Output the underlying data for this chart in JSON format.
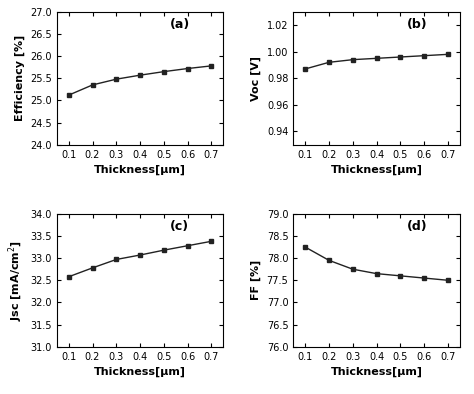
{
  "thickness": [
    0.1,
    0.2,
    0.3,
    0.4,
    0.5,
    0.6,
    0.7
  ],
  "efficiency": [
    25.12,
    25.35,
    25.48,
    25.57,
    25.65,
    25.72,
    25.78
  ],
  "voc": [
    0.987,
    0.992,
    0.994,
    0.995,
    0.996,
    0.997,
    0.998
  ],
  "jsc": [
    32.58,
    32.78,
    32.97,
    33.07,
    33.18,
    33.28,
    33.38
  ],
  "ff": [
    78.25,
    77.95,
    77.75,
    77.65,
    77.6,
    77.55,
    77.5
  ],
  "eff_ylim": [
    24.0,
    27.0
  ],
  "eff_yticks": [
    24.0,
    24.5,
    25.0,
    25.5,
    26.0,
    26.5,
    27.0
  ],
  "voc_ylim": [
    0.93,
    1.03
  ],
  "voc_yticks": [
    0.94,
    0.96,
    0.98,
    1.0,
    1.02
  ],
  "jsc_ylim": [
    31.0,
    34.0
  ],
  "jsc_yticks": [
    31.0,
    31.5,
    32.0,
    32.5,
    33.0,
    33.5,
    34.0
  ],
  "ff_ylim": [
    76.0,
    79.0
  ],
  "ff_yticks": [
    76.0,
    76.5,
    77.0,
    77.5,
    78.0,
    78.5,
    79.0
  ],
  "xticks": [
    0.1,
    0.2,
    0.3,
    0.4,
    0.5,
    0.6,
    0.7
  ],
  "xlim": [
    0.05,
    0.75
  ],
  "xlabel": "Thickness[μm]",
  "ylabel_a": "Efficiency [%]",
  "ylabel_b": "Voc [V]",
  "ylabel_c": "Jsc [mA/cm$^2$]",
  "ylabel_d": "FF [%]",
  "label_a": "(a)",
  "label_b": "(b)",
  "label_c": "(c)",
  "label_d": "(d)",
  "line_color": "#222222",
  "marker": "s",
  "markersize": 3.5,
  "linewidth": 1.0,
  "background_color": "#ffffff",
  "tick_labelsize": 7,
  "label_fontsize": 8,
  "panel_fontsize": 9
}
